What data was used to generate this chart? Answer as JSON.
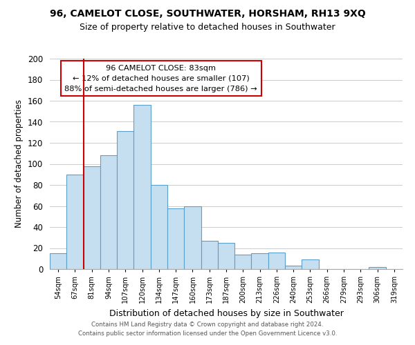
{
  "title": "96, CAMELOT CLOSE, SOUTHWATER, HORSHAM, RH13 9XQ",
  "subtitle": "Size of property relative to detached houses in Southwater",
  "xlabel": "Distribution of detached houses by size in Southwater",
  "ylabel": "Number of detached properties",
  "bin_labels": [
    "54sqm",
    "67sqm",
    "81sqm",
    "94sqm",
    "107sqm",
    "120sqm",
    "134sqm",
    "147sqm",
    "160sqm",
    "173sqm",
    "187sqm",
    "200sqm",
    "213sqm",
    "226sqm",
    "240sqm",
    "253sqm",
    "266sqm",
    "279sqm",
    "293sqm",
    "306sqm",
    "319sqm"
  ],
  "bar_heights": [
    15,
    90,
    98,
    108,
    131,
    156,
    80,
    58,
    60,
    27,
    25,
    14,
    15,
    16,
    3,
    9,
    0,
    0,
    0,
    2,
    0
  ],
  "bar_color": "#c6dff0",
  "bar_edge_color": "#5a9ec9",
  "vline_x_index": 2,
  "annotation_title": "96 CAMELOT CLOSE: 83sqm",
  "annotation_line1": "← 12% of detached houses are smaller (107)",
  "annotation_line2": "88% of semi-detached houses are larger (786) →",
  "annotation_box_color": "#ffffff",
  "annotation_box_edge": "#cc0000",
  "vline_color": "#cc0000",
  "ylim": [
    0,
    200
  ],
  "yticks": [
    0,
    20,
    40,
    60,
    80,
    100,
    120,
    140,
    160,
    180,
    200
  ],
  "footer1": "Contains HM Land Registry data © Crown copyright and database right 2024.",
  "footer2": "Contains public sector information licensed under the Open Government Licence v3.0.",
  "bg_color": "#ffffff",
  "grid_color": "#cccccc"
}
